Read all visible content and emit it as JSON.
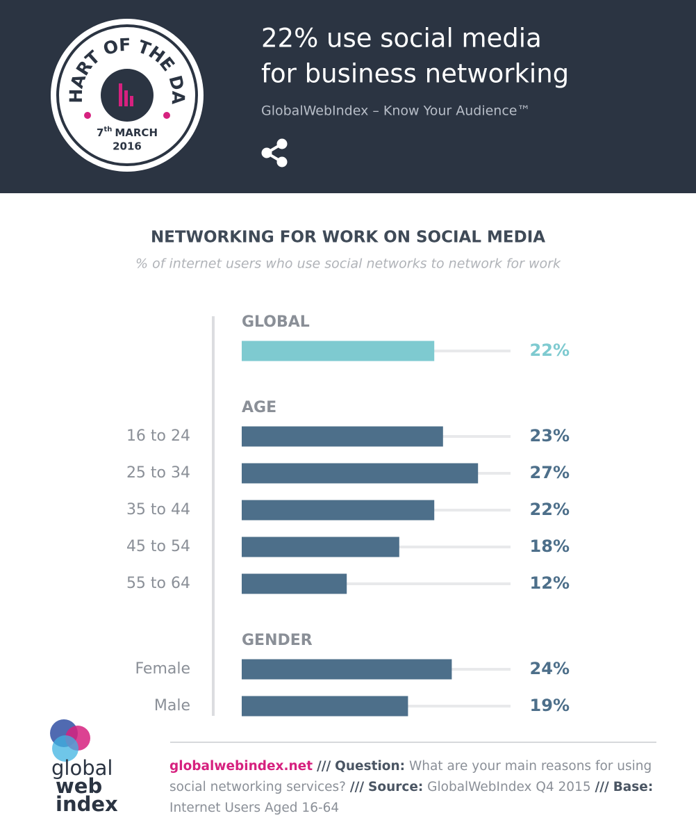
{
  "header": {
    "badge_title": "CHART OF THE DAY",
    "badge_day": "7",
    "badge_suffix": "th",
    "badge_month": "MARCH",
    "badge_year": "2016",
    "title_lines": [
      "22% use social media",
      "for business networking"
    ],
    "tagline": "GlobalWebIndex – Know Your Audience™"
  },
  "chart_data": {
    "type": "bar",
    "title": "NETWORKING FOR WORK ON SOCIAL MEDIA",
    "subtitle": "% of internet users who use social networks to network for work",
    "groups": [
      {
        "name": "GLOBAL",
        "color": "#7ecad0",
        "categories": [
          null
        ],
        "values": [
          22
        ],
        "value_labels": [
          "22%"
        ]
      },
      {
        "name": "AGE",
        "color": "#4d6f8a",
        "categories": [
          "16 to 24",
          "25 to 34",
          "35 to 44",
          "45 to 54",
          "55 to 64"
        ],
        "values": [
          23,
          27,
          22,
          18,
          12
        ],
        "value_labels": [
          "23%",
          "27%",
          "22%",
          "18%",
          "12%"
        ]
      },
      {
        "name": "GENDER",
        "color": "#4d6f8a",
        "categories": [
          "Female",
          "Male"
        ],
        "values": [
          24,
          19
        ],
        "value_labels": [
          "24%",
          "19%"
        ]
      }
    ]
  },
  "footer": {
    "logo": [
      "global",
      "web",
      "index"
    ],
    "site": "globalwebindex.net",
    "separator": "///",
    "question_label": "Question:",
    "question": "What are your main reasons for using social networking services?",
    "source_label": "Source:",
    "source": "GlobalWebIndex Q4 2015",
    "base_label": "Base:",
    "base": "Internet Users Aged 16-64"
  }
}
